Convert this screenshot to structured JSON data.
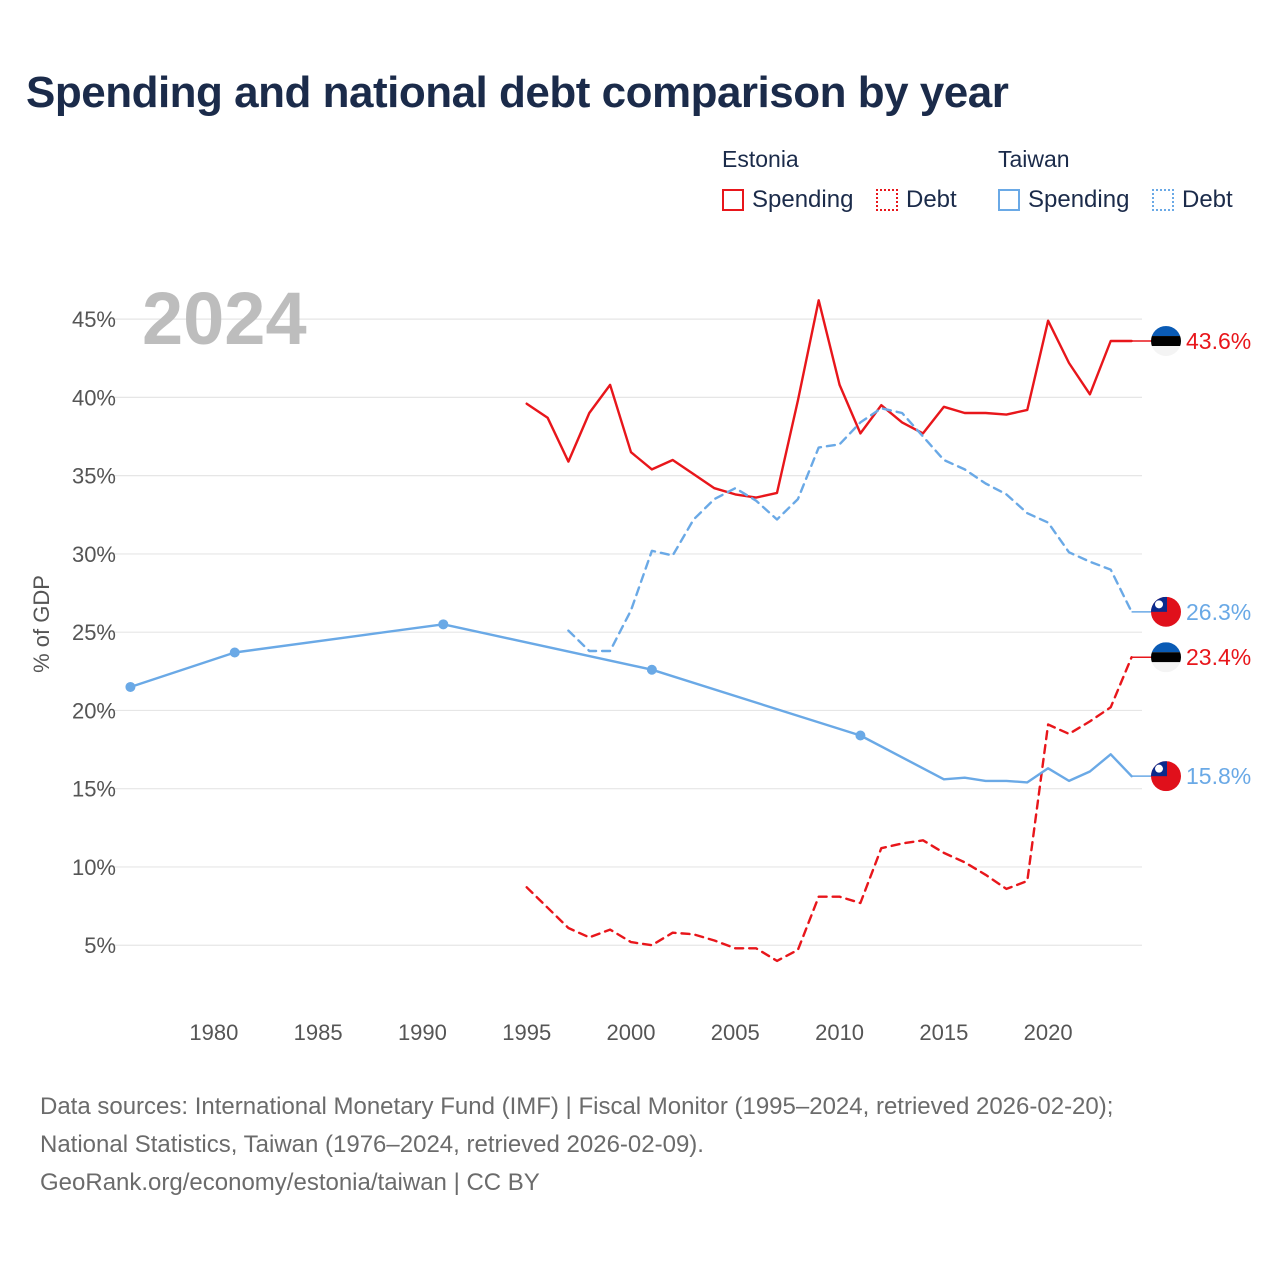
{
  "title": "Spending and national debt comparison by year",
  "legend": {
    "groups": [
      {
        "country": "Estonia",
        "items": [
          {
            "label": "Spending"
          },
          {
            "label": "Debt"
          }
        ]
      },
      {
        "country": "Taiwan",
        "items": [
          {
            "label": "Spending"
          },
          {
            "label": "Debt"
          }
        ]
      }
    ]
  },
  "colors": {
    "estonia": "#e8161b",
    "taiwan": "#6aa9e6"
  },
  "year_label": "2024",
  "chart_data": {
    "type": "line",
    "title": "Spending and national debt comparison by year",
    "xlabel": "",
    "ylabel": "% of GDP",
    "xlim": [
      1975.5,
      2024.5
    ],
    "ylim": [
      1.5,
      47.5
    ],
    "x_ticks": [
      {
        "value": 1980,
        "label": "1980"
      },
      {
        "value": 1985,
        "label": "1985"
      },
      {
        "value": 1990,
        "label": "1990"
      },
      {
        "value": 1995,
        "label": "1995"
      },
      {
        "value": 2000,
        "label": "2000"
      },
      {
        "value": 2005,
        "label": "2005"
      },
      {
        "value": 2010,
        "label": "2010"
      },
      {
        "value": 2015,
        "label": "2015"
      },
      {
        "value": 2020,
        "label": "2020"
      }
    ],
    "y_ticks": [
      {
        "value": 5,
        "label": "5%"
      },
      {
        "value": 10,
        "label": "10%"
      },
      {
        "value": 15,
        "label": "15%"
      },
      {
        "value": 20,
        "label": "20%"
      },
      {
        "value": 25,
        "label": "25%"
      },
      {
        "value": 30,
        "label": "30%"
      },
      {
        "value": 35,
        "label": "35%"
      },
      {
        "value": 40,
        "label": "40%"
      },
      {
        "value": 45,
        "label": "45%"
      }
    ],
    "grid": true,
    "series": [
      {
        "name": "Estonia Spending",
        "country": "Estonia",
        "style": "solid",
        "color": "#e8161b",
        "end_label": "43.6%",
        "x": [
          1995,
          1996,
          1997,
          1998,
          1999,
          2000,
          2001,
          2002,
          2003,
          2004,
          2005,
          2006,
          2007,
          2008,
          2009,
          2010,
          2011,
          2012,
          2013,
          2014,
          2015,
          2016,
          2017,
          2018,
          2019,
          2020,
          2021,
          2022,
          2023,
          2024
        ],
        "y": [
          39.6,
          38.7,
          35.9,
          39.0,
          40.8,
          36.5,
          35.4,
          36.0,
          35.1,
          34.2,
          33.8,
          33.6,
          33.9,
          39.8,
          46.2,
          40.8,
          37.7,
          39.5,
          38.4,
          37.7,
          39.4,
          39.0,
          39.0,
          38.9,
          39.2,
          44.9,
          42.2,
          40.2,
          43.6,
          43.6
        ]
      },
      {
        "name": "Estonia Debt",
        "country": "Estonia",
        "style": "dashed",
        "color": "#e8161b",
        "end_label": "23.4%",
        "x": [
          1995,
          1996,
          1997,
          1998,
          1999,
          2000,
          2001,
          2002,
          2003,
          2004,
          2005,
          2006,
          2007,
          2008,
          2009,
          2010,
          2011,
          2012,
          2013,
          2014,
          2015,
          2016,
          2017,
          2018,
          2019,
          2020,
          2021,
          2022,
          2023,
          2024
        ],
        "y": [
          8.7,
          7.4,
          6.1,
          5.5,
          6.0,
          5.2,
          5.0,
          5.8,
          5.7,
          5.3,
          4.8,
          4.8,
          4.0,
          4.7,
          8.1,
          8.1,
          7.7,
          11.2,
          11.5,
          11.7,
          10.9,
          10.3,
          9.5,
          8.6,
          9.1,
          19.1,
          18.5,
          19.3,
          20.2,
          23.4
        ]
      },
      {
        "name": "Taiwan Spending",
        "country": "Taiwan",
        "style": "solid",
        "color": "#6aa9e6",
        "end_label": "15.8%",
        "x": [
          1976,
          1981,
          1991,
          2001,
          2011,
          2015,
          2016,
          2017,
          2018,
          2019,
          2020,
          2021,
          2022,
          2023,
          2024
        ],
        "y": [
          21.5,
          23.7,
          25.5,
          22.6,
          18.4,
          15.6,
          15.7,
          15.5,
          15.5,
          15.4,
          16.3,
          15.5,
          16.1,
          17.2,
          15.8
        ],
        "markers_x": [
          1976,
          1981,
          1991,
          2001,
          2011
        ]
      },
      {
        "name": "Taiwan Debt",
        "country": "Taiwan",
        "style": "dashed",
        "color": "#6aa9e6",
        "end_label": "26.3%",
        "x": [
          1997,
          1998,
          1999,
          2000,
          2001,
          2002,
          2003,
          2004,
          2005,
          2006,
          2007,
          2008,
          2009,
          2010,
          2011,
          2012,
          2013,
          2014,
          2015,
          2016,
          2017,
          2018,
          2019,
          2020,
          2021,
          2022,
          2023,
          2024
        ],
        "y": [
          25.1,
          23.8,
          23.8,
          26.4,
          30.2,
          29.9,
          32.2,
          33.5,
          34.2,
          33.4,
          32.2,
          33.5,
          36.8,
          37.0,
          38.4,
          39.3,
          39.0,
          37.5,
          36.0,
          35.4,
          34.5,
          33.8,
          32.6,
          32.0,
          30.1,
          29.5,
          29.0,
          26.3
        ]
      }
    ]
  },
  "footer": {
    "line1": "Data sources: International Monetary Fund (IMF) | Fiscal Monitor (1995–2024, retrieved 2026-02-20);",
    "line2": "National Statistics, Taiwan (1976–2024, retrieved 2026-02-09).",
    "line3": "GeoRank.org/economy/estonia/taiwan | CC BY"
  }
}
